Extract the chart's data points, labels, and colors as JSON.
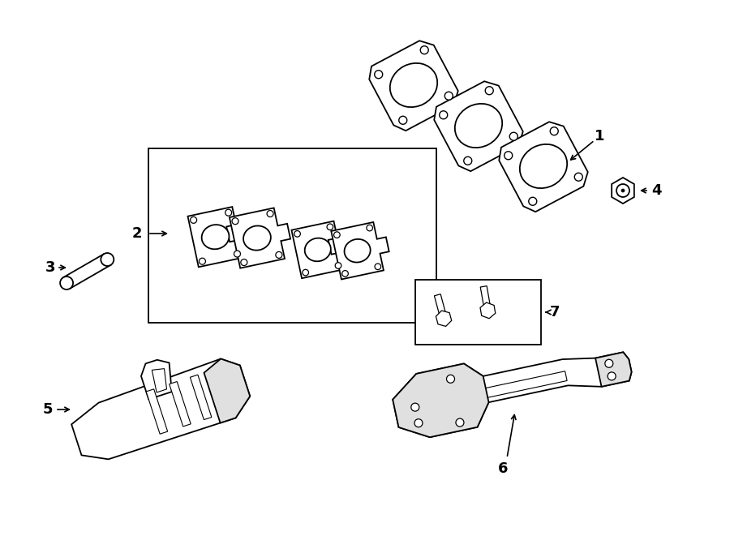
{
  "bg_color": "#ffffff",
  "line_color": "#000000",
  "lw": 1.3,
  "fig_width": 9.0,
  "fig_height": 6.61,
  "dpi": 100
}
